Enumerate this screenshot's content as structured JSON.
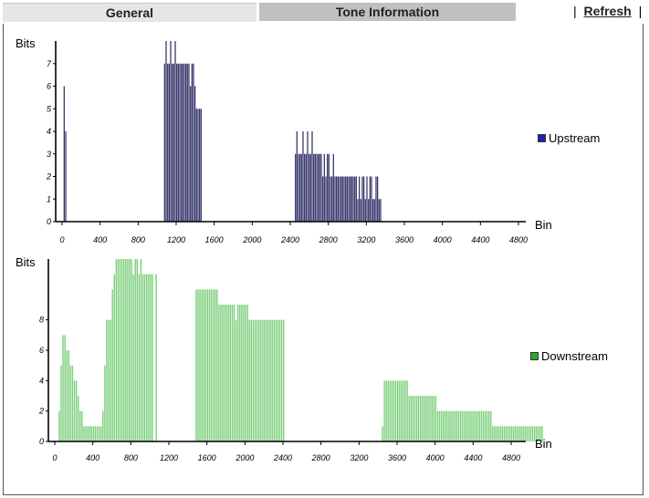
{
  "tabs": [
    {
      "label": "General",
      "active": false
    },
    {
      "label": "Tone Information",
      "active": true
    }
  ],
  "toolbar": {
    "sep_left": "|",
    "refresh_label": "Refresh",
    "sep_right": "|"
  },
  "colors": {
    "upstream": "#1f1fb4",
    "downstream": "#2aa82a",
    "upstream_bar": "#3a3a6e",
    "downstream_bar": "#7ccf7c"
  },
  "chart_data": [
    {
      "type": "bar",
      "name": "upstream",
      "ylabel": "Bits",
      "xlabel": "Bin",
      "legend": "Upstream",
      "xlim": [
        0,
        4800
      ],
      "ylim": [
        0,
        8
      ],
      "y_ticks": [
        0,
        1,
        2,
        3,
        4,
        5,
        6,
        7
      ],
      "x_ticks": [
        0,
        400,
        800,
        1200,
        1600,
        2000,
        2400,
        2800,
        3200,
        3600,
        4000,
        4400,
        4800
      ],
      "bar_step": 16,
      "segments": [
        {
          "start": 16,
          "values": [
            6,
            4
          ]
        },
        {
          "start": 1072,
          "values": [
            7,
            8,
            7,
            7,
            8,
            7,
            7,
            8,
            7,
            7,
            7,
            7,
            7,
            7,
            7,
            7,
            7,
            6,
            7,
            7,
            6,
            5,
            5,
            5,
            5
          ]
        },
        {
          "start": 2448,
          "values": [
            3,
            4,
            3,
            3,
            3,
            4,
            3,
            3,
            4,
            3,
            3,
            4,
            3,
            3,
            3,
            3,
            3,
            3,
            2,
            3,
            2,
            3,
            3,
            2,
            2,
            3,
            2,
            2,
            2,
            2,
            2,
            2,
            2,
            2,
            2,
            2,
            2,
            2,
            2,
            2,
            2,
            1,
            2,
            1,
            2,
            2,
            1,
            2,
            1,
            2,
            2,
            1,
            1,
            2,
            2,
            1,
            1
          ]
        }
      ]
    },
    {
      "type": "bar",
      "name": "downstream",
      "ylabel": "Bits",
      "xlabel": "Bin",
      "legend": "Downstream",
      "xlim": [
        0,
        4800
      ],
      "ylim": [
        0,
        12
      ],
      "y_ticks": [
        0,
        2,
        4,
        6,
        8
      ],
      "x_ticks": [
        0,
        400,
        800,
        1200,
        1600,
        2000,
        2400,
        2800,
        3200,
        3600,
        4000,
        4400,
        4800
      ],
      "bar_step": 20,
      "segments": [
        {
          "start": 40,
          "values": [
            2,
            5,
            7,
            7,
            6,
            6,
            5,
            5,
            4,
            4,
            3,
            2,
            2,
            1,
            1,
            1,
            1,
            1,
            1,
            1,
            1,
            1,
            1,
            2,
            5,
            8,
            8,
            8,
            10,
            11,
            12,
            12,
            12,
            12,
            12,
            12,
            12,
            12,
            12,
            11,
            12,
            12,
            11,
            12,
            11,
            11,
            11,
            11,
            11,
            11,
            0,
            11
          ]
        },
        {
          "start": 1480,
          "values": [
            10,
            10,
            10,
            10,
            10,
            10,
            10,
            10,
            10,
            10,
            10,
            10,
            9,
            9,
            9,
            9,
            9,
            9,
            9,
            9,
            9,
            8,
            9,
            9,
            9,
            9,
            9,
            9,
            8,
            8,
            8,
            8,
            8,
            8,
            8,
            8,
            8,
            8,
            8,
            8,
            8,
            8,
            8,
            8,
            8,
            8,
            8
          ]
        },
        {
          "start": 3440,
          "values": [
            1,
            4,
            4,
            4,
            4,
            4,
            4,
            4,
            4,
            4,
            4,
            4,
            4,
            4,
            3,
            3,
            3,
            3,
            3,
            3,
            3,
            3,
            3,
            3,
            3,
            3,
            3,
            3,
            3,
            2,
            2,
            2,
            2,
            2,
            2,
            2,
            2,
            2,
            2,
            2,
            2,
            2,
            2,
            2,
            2,
            2,
            2,
            2,
            2,
            2,
            2,
            2,
            2,
            2,
            2,
            2,
            2,
            2,
            1,
            1,
            1,
            1,
            1,
            1,
            1,
            1,
            1,
            1,
            1,
            1,
            1,
            1,
            1,
            1,
            1,
            1,
            1,
            1,
            1,
            1,
            1,
            1,
            1,
            1,
            1
          ]
        }
      ]
    }
  ]
}
